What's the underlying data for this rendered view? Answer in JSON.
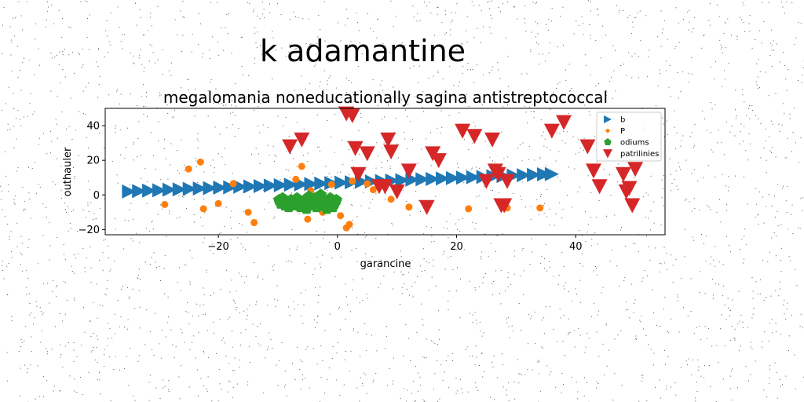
{
  "chart_data": {
    "type": "scatter",
    "suptitle": "k adamantine",
    "title": "megalomania noneducationally sagina antistreptococcal",
    "xlabel": "garancine",
    "ylabel": "outhauler",
    "xlim": [
      -39,
      55
    ],
    "ylim": [
      -23,
      50
    ],
    "xticks": [
      -20,
      0,
      20,
      40
    ],
    "yticks": [
      -20,
      0,
      20,
      40
    ],
    "grid": false,
    "legend_position": "top-right",
    "series": [
      {
        "name": "b",
        "marker": "triangle-right",
        "color": "#1f77b4",
        "x": [
          -35,
          -33.3,
          -31.6,
          -29.9,
          -28.2,
          -26.5,
          -24.8,
          -23.1,
          -21.4,
          -19.7,
          -18,
          -16.3,
          -14.6,
          -12.9,
          -11.2,
          -9.5,
          -7.8,
          -6.1,
          -4.4,
          -2.7,
          -1,
          0.7,
          2.4,
          4.1,
          5.8,
          7.5,
          9.2,
          10.9,
          12.6,
          14.3,
          16,
          17.7,
          19.4,
          21.1,
          22.8,
          24.5,
          26.2,
          27.9,
          29.6,
          31.3,
          33,
          34.7,
          36
        ],
        "y": [
          2,
          2.2,
          2.5,
          2.7,
          3,
          3.2,
          3.5,
          3.7,
          3.9,
          4.2,
          4.4,
          4.7,
          4.9,
          5.1,
          5.4,
          5.6,
          5.9,
          6.1,
          6.3,
          6.6,
          6.8,
          7.1,
          7.3,
          7.6,
          7.8,
          8,
          8.3,
          8.5,
          8.8,
          9,
          9.2,
          9.5,
          9.7,
          10,
          10.2,
          10.4,
          10.7,
          10.9,
          11.2,
          11.4,
          11.6,
          11.9,
          12
        ]
      },
      {
        "name": "P",
        "marker": "circle",
        "color": "#ff7f0e",
        "x": [
          -29,
          -25,
          -23,
          -22.5,
          -20,
          -17.5,
          -15,
          -14,
          -10,
          -8,
          -7,
          -6,
          -5,
          -4.5,
          -2.5,
          -1,
          0.5,
          1.5,
          2,
          2.5,
          5,
          6,
          8,
          9,
          12,
          22,
          28.5,
          34
        ],
        "y": [
          -5.5,
          15,
          19,
          -8,
          -5,
          6.5,
          -10,
          -16,
          -4,
          -6,
          9,
          16.5,
          -14,
          2.5,
          -10,
          6,
          -12,
          -19,
          -17,
          8,
          6.5,
          3,
          5,
          -2.5,
          -7,
          -8,
          -7.5,
          -7.5
        ]
      },
      {
        "name": "odiums",
        "marker": "pentagon",
        "color": "#2ca02c",
        "x": [
          -9.8,
          -9.5,
          -9.2,
          -8.8,
          -8.5,
          -8.2,
          -7.8,
          -7.5,
          -7.2,
          -6.8,
          -6.5,
          -6.2,
          -5.8,
          -5.5,
          -5.2,
          -4.8,
          -4.5,
          -4.2,
          -3.8,
          -3.5,
          -3.2,
          -2.8,
          -2.5,
          -2.2,
          -1.8,
          -1.5,
          -1.2,
          -0.8,
          -0.5,
          -0.2
        ],
        "y": [
          -3,
          -5,
          -2,
          -6,
          -4,
          -7,
          -3,
          -5,
          -6,
          -2,
          -4,
          -7,
          -5,
          -3,
          -8,
          -1,
          -6,
          -4,
          -2,
          -7,
          -5,
          0,
          -3,
          -6,
          -8,
          -4,
          -2,
          -7,
          -5,
          -3
        ]
      },
      {
        "name": "patrilinies",
        "marker": "triangle-down",
        "color": "#d62728",
        "x": [
          -8,
          -6,
          1.5,
          2.5,
          3,
          3.5,
          5,
          7,
          8,
          8.5,
          9,
          10,
          12,
          15,
          16,
          17,
          21,
          23,
          25,
          26,
          26.5,
          27,
          27.5,
          28,
          28.5,
          36,
          38,
          42,
          43,
          44,
          48,
          48.5,
          49,
          49.5,
          50
        ],
        "y": [
          28,
          32,
          47,
          46,
          27,
          12,
          24,
          5,
          5,
          32,
          25,
          2,
          14,
          -7,
          24,
          20,
          37,
          34,
          8,
          32,
          14,
          12,
          -6,
          -6,
          8,
          37,
          42,
          28,
          14,
          5,
          12,
          2,
          4,
          -6,
          15
        ]
      }
    ]
  }
}
